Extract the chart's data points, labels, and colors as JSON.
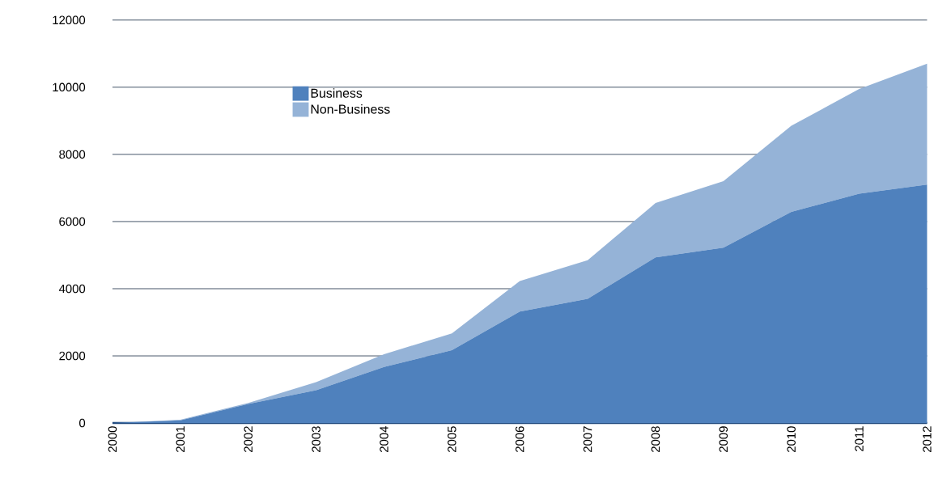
{
  "chart_data": {
    "type": "area",
    "stacked": true,
    "categories": [
      "2000",
      "2001",
      "2002",
      "2003",
      "2004",
      "2005",
      "2006",
      "2007",
      "2008",
      "2009",
      "2010",
      "2011",
      "2012"
    ],
    "series": [
      {
        "name": "Business",
        "color": "#4f81bd",
        "values": [
          0,
          80,
          570,
          980,
          1670,
          2170,
          3320,
          3700,
          4930,
          5220,
          6290,
          6830,
          7100
        ]
      },
      {
        "name": "Non-Business",
        "color": "#95b3d7",
        "values": [
          0,
          20,
          30,
          240,
          380,
          500,
          910,
          1150,
          1620,
          1980,
          2560,
          3120,
          3600
        ]
      }
    ],
    "ylim": [
      0,
      12000
    ],
    "yticks": [
      0,
      2000,
      4000,
      6000,
      8000,
      10000,
      12000
    ],
    "grid": "y",
    "legend": "top left"
  }
}
